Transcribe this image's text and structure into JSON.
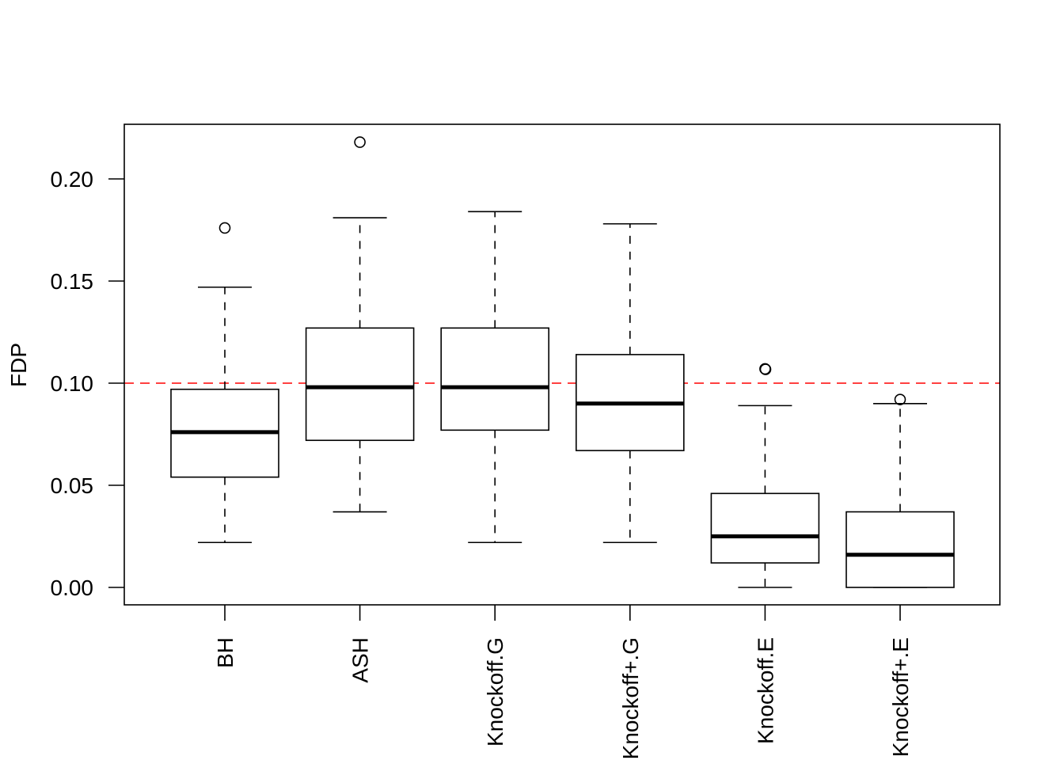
{
  "chart_data": {
    "type": "boxplot",
    "title": "",
    "xlabel": "",
    "ylabel": "FDP",
    "ylim": [
      -0.0085,
      0.226
    ],
    "yticks": [
      0.0,
      0.05,
      0.1,
      0.15,
      0.2
    ],
    "ytick_labels": [
      "0.00",
      "0.05",
      "0.10",
      "0.15",
      "0.20"
    ],
    "reference_line": {
      "y": 0.1,
      "color": "#ff0000",
      "style": "dashed"
    },
    "categories": [
      "BH",
      "ASH",
      "Knockoff.G",
      "Knockoff+.G",
      "Knockoff.E",
      "Knockoff+.E"
    ],
    "boxes": [
      {
        "name": "BH",
        "whisker_low": 0.022,
        "q1": 0.054,
        "median": 0.076,
        "q3": 0.097,
        "whisker_high": 0.147,
        "outliers": [
          0.176
        ]
      },
      {
        "name": "ASH",
        "whisker_low": 0.037,
        "q1": 0.072,
        "median": 0.098,
        "q3": 0.127,
        "whisker_high": 0.181,
        "outliers": [
          0.218
        ]
      },
      {
        "name": "Knockoff.G",
        "whisker_low": 0.022,
        "q1": 0.077,
        "median": 0.098,
        "q3": 0.127,
        "whisker_high": 0.184,
        "outliers": []
      },
      {
        "name": "Knockoff+.G",
        "whisker_low": 0.022,
        "q1": 0.067,
        "median": 0.09,
        "q3": 0.114,
        "whisker_high": 0.178,
        "outliers": []
      },
      {
        "name": "Knockoff.E",
        "whisker_low": 0.0,
        "q1": 0.012,
        "median": 0.025,
        "q3": 0.046,
        "whisker_high": 0.089,
        "outliers": [
          0.107,
          0.107
        ]
      },
      {
        "name": "Knockoff+.E",
        "whisker_low": 0.0,
        "q1": 0.0,
        "median": 0.016,
        "q3": 0.037,
        "whisker_high": 0.09,
        "outliers": [
          0.092
        ]
      }
    ],
    "colors": {
      "box": "#000000",
      "reference": "#ff0000"
    },
    "grid": false
  }
}
